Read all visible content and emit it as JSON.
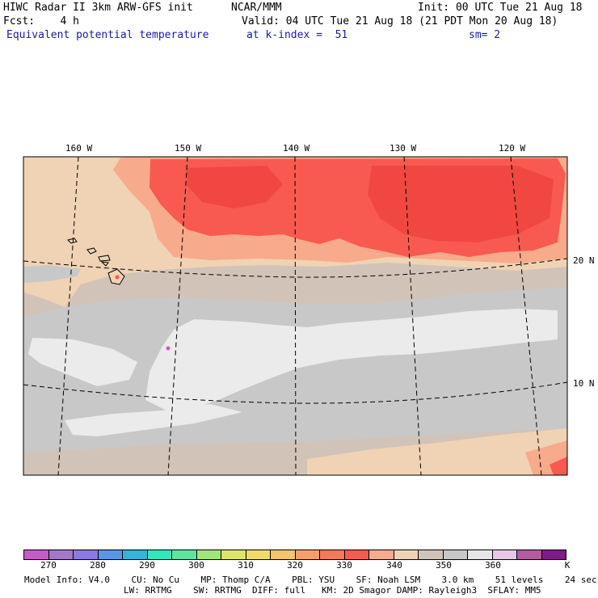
{
  "header": {
    "title": "HIWC Radar II 3km ARW-GFS init",
    "org": "NCAR/MMM",
    "init": "Init: 00 UTC Tue 21 Aug 18",
    "fcst": "Fcst:    4 h",
    "valid": "Valid: 04 UTC Tue 21 Aug 18 (21 PDT Mon 20 Aug 18)",
    "field": "Equivalent potential temperature",
    "level": "at k-index =  51",
    "smooth": "sm= 2"
  },
  "map": {
    "lon_labels": [
      "160 W",
      "150 W",
      "140 W",
      "130 W",
      "120 W"
    ],
    "lat_labels": [
      "20 N",
      "10 N"
    ]
  },
  "colorbar": {
    "colors": [
      "#c85ac8",
      "#a478c8",
      "#8c78e6",
      "#5a96e6",
      "#32b4dc",
      "#32e6be",
      "#5ae69c",
      "#a0e678",
      "#dce664",
      "#f0dc64",
      "#f8c46e",
      "#f8a064",
      "#f8785a",
      "#f85a50",
      "#f8aa8c",
      "#f0d2b4",
      "#d2c3b9",
      "#c8c8c8",
      "#e6e6e6",
      "#e6c8e6",
      "#b45aa0",
      "#82198c"
    ],
    "tick_labels": [
      "270",
      "280",
      "290",
      "300",
      "310",
      "320",
      "330",
      "340",
      "350",
      "360",
      "K"
    ]
  },
  "footer": {
    "line1": "Model Info: V4.0    CU: No Cu    MP: Thomp C/A    PBL: YSU    SF: Noah LSM    3.0 km    51 levels    24 sec",
    "line2": "LW: RRTMG    SW: RRTMG  DIFF: full   KM: 2D Smagor DAMP: Rayleigh3  SFLAY: MM5"
  }
}
